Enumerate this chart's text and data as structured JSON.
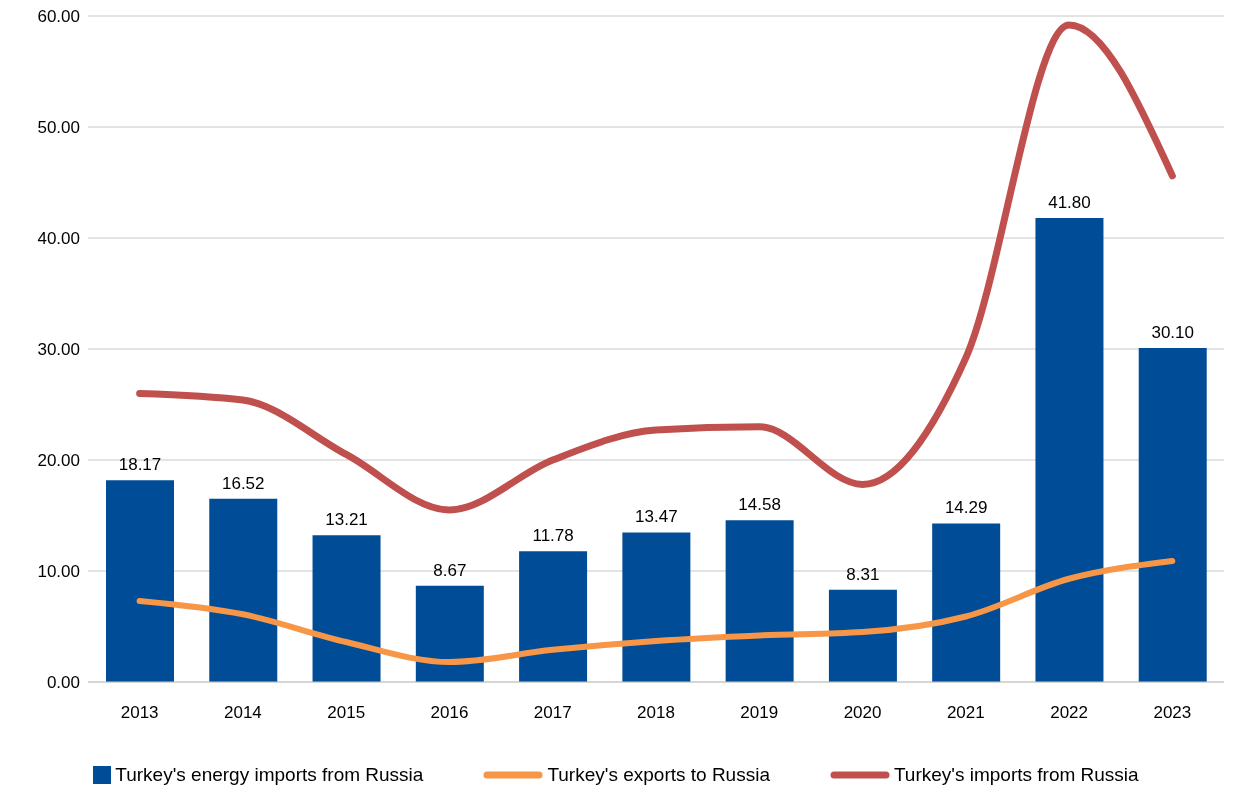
{
  "chart_data": {
    "type": "bar",
    "categories": [
      "2013",
      "2014",
      "2015",
      "2016",
      "2017",
      "2018",
      "2019",
      "2020",
      "2021",
      "2022",
      "2023"
    ],
    "series": [
      {
        "name": "Turkey's energy imports from Russia",
        "color": "#004c97",
        "values": [
          18.17,
          16.52,
          13.21,
          8.67,
          11.78,
          13.47,
          14.58,
          8.31,
          14.29,
          41.8,
          30.1
        ],
        "value_labels": [
          "18.17",
          "16.52",
          "13.21",
          "8.67",
          "11.78",
          "13.47",
          "14.58",
          "8.31",
          "14.29",
          "41.80",
          "30.10"
        ]
      },
      {
        "name": "Turkey's exports to Russia",
        "type": "line",
        "color": "#f79646",
        "values": [
          7.3,
          6.1,
          3.6,
          1.8,
          2.9,
          3.7,
          4.2,
          4.5,
          5.9,
          9.3,
          10.9
        ]
      },
      {
        "name": "Turkey's imports from Russia",
        "type": "line",
        "color": "#c0504d",
        "values": [
          26.0,
          25.4,
          20.5,
          15.5,
          20.0,
          22.7,
          23.0,
          17.8,
          29.2,
          59.2,
          45.6
        ]
      }
    ],
    "ylim": [
      0,
      60
    ],
    "yticks": [
      {
        "value": 0,
        "label": "0.00"
      },
      {
        "value": 10,
        "label": "10.00"
      },
      {
        "value": 20,
        "label": "20.00"
      },
      {
        "value": 30,
        "label": "30.00"
      },
      {
        "value": 40,
        "label": "40.00"
      },
      {
        "value": 50,
        "label": "50.00"
      },
      {
        "value": 60,
        "label": "60.00"
      }
    ],
    "grid": "y",
    "legend": "bottom",
    "marker": "none",
    "line_style": "solid"
  }
}
